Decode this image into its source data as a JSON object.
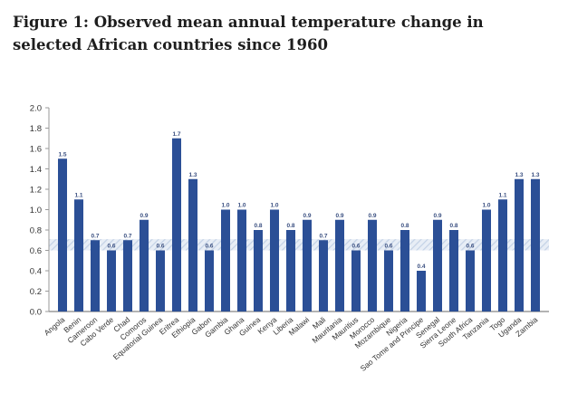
{
  "chart_data": {
    "type": "bar",
    "title": "Figure 1: Observed mean annual temperature change in selected African countries since 1960",
    "xlabel": "",
    "ylabel": "",
    "ylim": [
      0,
      2.0
    ],
    "yticks": [
      "0.0",
      "0.2",
      "0.4",
      "0.6",
      "0.8",
      "1.0",
      "1.2",
      "1.4",
      "1.6",
      "1.8",
      "2.0"
    ],
    "grid": false,
    "bar_color": "#2b4f96",
    "band": {
      "from": 0.6,
      "to": 0.71,
      "style": "hatched",
      "color": "#c9d6e8"
    },
    "categories": [
      "Angola",
      "Benin",
      "Cameroon",
      "Cabo Verde",
      "Chad",
      "Comoros",
      "Equatorial Guinea",
      "Eritrea",
      "Ethiopia",
      "Gabon",
      "Gambia",
      "Ghana",
      "Guinea",
      "Kenya",
      "Liberia",
      "Malawi",
      "Mali",
      "Mauritania",
      "Mauritius",
      "Morocco",
      "Mozambique",
      "Nigeria",
      "Sao Tome and Principe",
      "Senegal",
      "Sierra Leone",
      "South Africa",
      "Tanzania",
      "Togo",
      "Uganda",
      "Zambia"
    ],
    "values": [
      1.5,
      1.1,
      0.7,
      0.6,
      0.7,
      0.9,
      0.6,
      1.7,
      1.3,
      0.6,
      1.0,
      1.0,
      0.8,
      1.0,
      0.8,
      0.9,
      0.7,
      0.9,
      0.6,
      0.9,
      0.6,
      0.8,
      0.4,
      0.9,
      0.8,
      0.6,
      1.0,
      1.1,
      1.3,
      1.3
    ],
    "data_labels": [
      "1.5",
      "1.1",
      "0.7",
      "0.6",
      "0.7",
      "0.9",
      "0.6",
      "1.7",
      "1.3",
      "0.6",
      "1.0",
      "1.0",
      "0.8",
      "1.0",
      "0.8",
      "0.9",
      "0.7",
      "0.9",
      "0.6",
      "0.9",
      "0.6",
      "0.8",
      "0.4",
      "0.9",
      "0.8",
      "0.6",
      "1.0",
      "1.1",
      "1.3",
      "1.3"
    ]
  }
}
